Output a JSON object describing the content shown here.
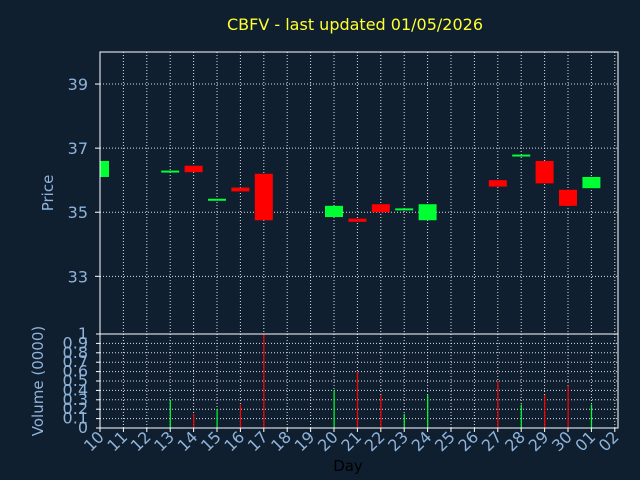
{
  "chart_data": [
    {
      "type": "candlestick",
      "title": "CBFV - last updated 01/05/2026",
      "xlabel": "",
      "ylabel": "Price",
      "ylim": [
        31.2,
        40.0
      ],
      "yticks": [
        "33",
        "35",
        "37",
        "39"
      ],
      "grid": true,
      "colors": {
        "up": "#00ff33",
        "down": "#ff0000"
      },
      "data": [
        {
          "x": "10",
          "open": 36.1,
          "close": 36.6
        },
        {
          "x": "13",
          "open": 36.25,
          "close": 36.3
        },
        {
          "x": "14",
          "open": 36.45,
          "close": 36.25
        },
        {
          "x": "15",
          "open": 35.38,
          "close": 35.42
        },
        {
          "x": "16",
          "open": 35.77,
          "close": 35.65
        },
        {
          "x": "17",
          "open": 36.2,
          "close": 34.75
        },
        {
          "x": "20",
          "open": 34.85,
          "close": 35.2
        },
        {
          "x": "21",
          "open": 34.8,
          "close": 34.7
        },
        {
          "x": "22",
          "open": 35.25,
          "close": 35.0
        },
        {
          "x": "23",
          "open": 35.08,
          "close": 35.12
        },
        {
          "x": "24",
          "open": 34.75,
          "close": 35.25
        },
        {
          "x": "27",
          "open": 36.0,
          "close": 35.8
        },
        {
          "x": "28",
          "open": 36.75,
          "close": 36.8
        },
        {
          "x": "29",
          "open": 36.6,
          "close": 35.9
        },
        {
          "x": "30",
          "open": 35.7,
          "close": 35.2
        },
        {
          "x": "01",
          "open": 35.75,
          "close": 36.1
        }
      ]
    },
    {
      "type": "bar",
      "title": "",
      "xlabel": "Day",
      "ylabel": "Volume (0000)",
      "ylim": [
        0,
        1
      ],
      "yticks": [
        "0",
        "0.1",
        "0.2",
        "0.3",
        "0.4",
        "0.5",
        "0.6",
        "0.7",
        "0.8",
        "0.9",
        "1"
      ],
      "categories": [
        "10",
        "11",
        "12",
        "13",
        "14",
        "15",
        "16",
        "17",
        "18",
        "19",
        "20",
        "21",
        "22",
        "23",
        "24",
        "25",
        "26",
        "27",
        "28",
        "29",
        "30",
        "01",
        "02"
      ],
      "values": [
        {
          "x": "13",
          "volume": 0.3,
          "color": "#00ff33"
        },
        {
          "x": "14",
          "volume": 0.15,
          "color": "#ff0000"
        },
        {
          "x": "15",
          "volume": 0.2,
          "color": "#00ff33"
        },
        {
          "x": "16",
          "volume": 0.25,
          "color": "#ff0000"
        },
        {
          "x": "17",
          "volume": 1.0,
          "color": "#ff0000"
        },
        {
          "x": "20",
          "volume": 0.4,
          "color": "#00ff33"
        },
        {
          "x": "21",
          "volume": 0.6,
          "color": "#ff0000"
        },
        {
          "x": "22",
          "volume": 0.35,
          "color": "#ff0000"
        },
        {
          "x": "23",
          "volume": 0.15,
          "color": "#00ff33"
        },
        {
          "x": "24",
          "volume": 0.35,
          "color": "#00ff33"
        },
        {
          "x": "27",
          "volume": 0.5,
          "color": "#ff0000"
        },
        {
          "x": "28",
          "volume": 0.25,
          "color": "#00ff33"
        },
        {
          "x": "29",
          "volume": 0.35,
          "color": "#ff0000"
        },
        {
          "x": "30",
          "volume": 0.45,
          "color": "#ff0000"
        },
        {
          "x": "01",
          "volume": 0.25,
          "color": "#00ff33"
        }
      ]
    }
  ]
}
